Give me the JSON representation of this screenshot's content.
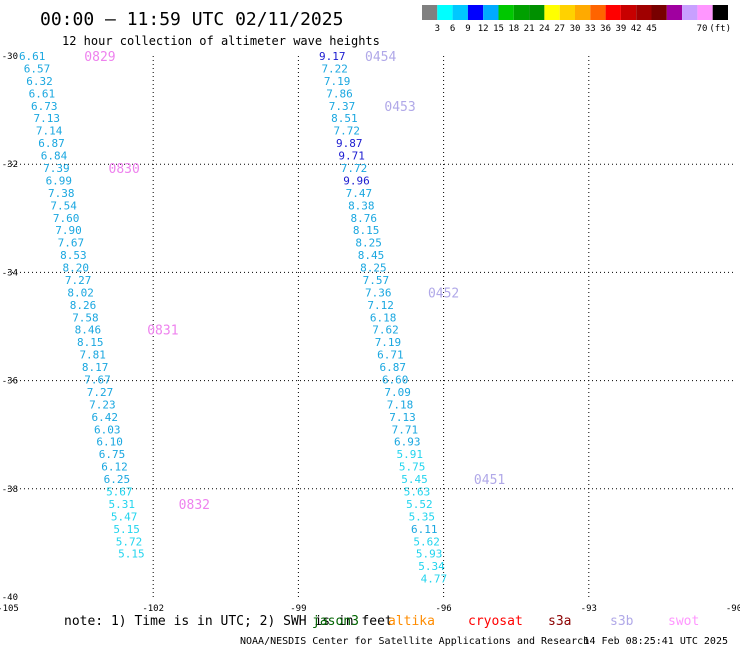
{
  "title": "00:00 – 11:59 UTC 02/11/2025",
  "subtitle": "12 hour collection of altimeter wave heights",
  "colorbar": {
    "colors": [
      "#808080",
      "#00ffff",
      "#00c8ff",
      "#0000ff",
      "#00aaff",
      "#00c800",
      "#00a000",
      "#009000",
      "#ffff00",
      "#ffd200",
      "#ffaa00",
      "#ff6400",
      "#ff0000",
      "#c80000",
      "#a00000",
      "#780000",
      "#a000a0",
      "#c8a0ff",
      "#ff96ff",
      "#000000"
    ],
    "tick_labels": [
      "3",
      "6",
      "9",
      "12",
      "15",
      "18",
      "21",
      "24",
      "27",
      "30",
      "33",
      "36",
      "39",
      "42",
      "45",
      "70"
    ],
    "unit": "(ft)"
  },
  "map": {
    "lon_range": [
      -105,
      -90
    ],
    "lat_range": [
      -40,
      -30
    ],
    "x_ticks": [
      {
        "value": -105,
        "label": "-105"
      },
      {
        "value": -102,
        "label": "-102"
      },
      {
        "value": -99,
        "label": "-99"
      },
      {
        "value": -96,
        "label": "-96"
      },
      {
        "value": -93,
        "label": "-93"
      },
      {
        "value": -90,
        "label": "-90"
      }
    ],
    "y_ticks": [
      {
        "value": -30,
        "label": "-30"
      },
      {
        "value": -32,
        "label": "-32"
      },
      {
        "value": -34,
        "label": "-34"
      },
      {
        "value": -36,
        "label": "-36"
      },
      {
        "value": -38,
        "label": "-38"
      },
      {
        "value": -40,
        "label": "-40"
      }
    ],
    "grid": true
  },
  "chart_data": {
    "type": "scatter",
    "x_axis": "longitude",
    "y_axis": "latitude",
    "series": [
      {
        "points": [
          {
            "lon": -104.5,
            "lat": -30.0,
            "label": "6.61",
            "color": "#1aa7e0"
          },
          {
            "lon": -104.4,
            "lat": -30.23,
            "label": "6.57",
            "color": "#1aa7e0"
          },
          {
            "lon": -104.35,
            "lat": -30.46,
            "label": "6.32",
            "color": "#1aa7e0"
          },
          {
            "lon": -104.3,
            "lat": -30.69,
            "label": "6.61",
            "color": "#1aa7e0"
          },
          {
            "lon": -104.25,
            "lat": -30.92,
            "label": "6.73",
            "color": "#1aa7e0"
          },
          {
            "lon": -104.2,
            "lat": -31.15,
            "label": "7.13",
            "color": "#1aa7e0"
          },
          {
            "lon": -104.15,
            "lat": -31.38,
            "label": "7.14",
            "color": "#1aa7e0"
          },
          {
            "lon": -104.1,
            "lat": -31.61,
            "label": "6.87",
            "color": "#1aa7e0"
          },
          {
            "lon": -104.05,
            "lat": -31.84,
            "label": "6.84",
            "color": "#1aa7e0"
          },
          {
            "lon": -104.0,
            "lat": -32.07,
            "label": "7.39",
            "color": "#1aa7e0"
          },
          {
            "lon": -103.95,
            "lat": -32.3,
            "label": "6.99",
            "color": "#1aa7e0"
          },
          {
            "lon": -103.9,
            "lat": -32.53,
            "label": "7.38",
            "color": "#1aa7e0"
          },
          {
            "lon": -103.85,
            "lat": -32.76,
            "label": "7.54",
            "color": "#1aa7e0"
          },
          {
            "lon": -103.8,
            "lat": -32.99,
            "label": "7.60",
            "color": "#1aa7e0"
          },
          {
            "lon": -103.75,
            "lat": -33.22,
            "label": "7.90",
            "color": "#1aa7e0"
          },
          {
            "lon": -103.7,
            "lat": -33.45,
            "label": "7.67",
            "color": "#1aa7e0"
          },
          {
            "lon": -103.65,
            "lat": -33.68,
            "label": "8.53",
            "color": "#1aa7e0"
          },
          {
            "lon": -103.6,
            "lat": -33.91,
            "label": "8.20",
            "color": "#1aa7e0"
          },
          {
            "lon": -103.55,
            "lat": -34.14,
            "label": "7.27",
            "color": "#1aa7e0"
          },
          {
            "lon": -103.5,
            "lat": -34.37,
            "label": "8.02",
            "color": "#1aa7e0"
          },
          {
            "lon": -103.45,
            "lat": -34.6,
            "label": "8.26",
            "color": "#1aa7e0"
          },
          {
            "lon": -103.4,
            "lat": -34.83,
            "label": "7.58",
            "color": "#1aa7e0"
          },
          {
            "lon": -103.35,
            "lat": -35.06,
            "label": "8.46",
            "color": "#1aa7e0"
          },
          {
            "lon": -103.3,
            "lat": -35.29,
            "label": "8.15",
            "color": "#1aa7e0"
          },
          {
            "lon": -103.25,
            "lat": -35.52,
            "label": "7.81",
            "color": "#1aa7e0"
          },
          {
            "lon": -103.2,
            "lat": -35.75,
            "label": "8.17",
            "color": "#1aa7e0"
          },
          {
            "lon": -103.15,
            "lat": -35.98,
            "label": "7.67",
            "color": "#1aa7e0"
          },
          {
            "lon": -103.1,
            "lat": -36.21,
            "label": "7.27",
            "color": "#1aa7e0"
          },
          {
            "lon": -103.05,
            "lat": -36.44,
            "label": "7.23",
            "color": "#1aa7e0"
          },
          {
            "lon": -103.0,
            "lat": -36.67,
            "label": "6.42",
            "color": "#1aa7e0"
          },
          {
            "lon": -102.95,
            "lat": -36.9,
            "label": "6.03",
            "color": "#1aa7e0"
          },
          {
            "lon": -102.9,
            "lat": -37.13,
            "label": "6.10",
            "color": "#1aa7e0"
          },
          {
            "lon": -102.85,
            "lat": -37.36,
            "label": "6.75",
            "color": "#1aa7e0"
          },
          {
            "lon": -102.8,
            "lat": -37.59,
            "label": "6.12",
            "color": "#1aa7e0"
          },
          {
            "lon": -102.75,
            "lat": -37.82,
            "label": "6.25",
            "color": "#1aa7e0"
          },
          {
            "lon": -102.7,
            "lat": -38.05,
            "label": "5.67",
            "color": "#22d4ee"
          },
          {
            "lon": -102.65,
            "lat": -38.28,
            "label": "5.31",
            "color": "#22d4ee"
          },
          {
            "lon": -102.6,
            "lat": -38.51,
            "label": "5.47",
            "color": "#22d4ee"
          },
          {
            "lon": -102.55,
            "lat": -38.74,
            "label": "5.15",
            "color": "#22d4ee"
          },
          {
            "lon": -102.5,
            "lat": -38.97,
            "label": "5.72",
            "color": "#22d4ee"
          },
          {
            "lon": -102.45,
            "lat": -39.2,
            "label": "5.15",
            "color": "#22d4ee"
          }
        ]
      },
      {
        "points": [
          {
            "lon": -98.3,
            "lat": -30.0,
            "label": "9.17",
            "color": "#1a1ad0"
          },
          {
            "lon": -98.25,
            "lat": -30.23,
            "label": "7.22",
            "color": "#1aa7e0"
          },
          {
            "lon": -98.2,
            "lat": -30.46,
            "label": "7.19",
            "color": "#1aa7e0"
          },
          {
            "lon": -98.15,
            "lat": -30.69,
            "label": "7.86",
            "color": "#1aa7e0"
          },
          {
            "lon": -98.1,
            "lat": -30.92,
            "label": "7.37",
            "color": "#1aa7e0"
          },
          {
            "lon": -98.05,
            "lat": -31.15,
            "label": "8.51",
            "color": "#1aa7e0"
          },
          {
            "lon": -98.0,
            "lat": -31.38,
            "label": "7.72",
            "color": "#1aa7e0"
          },
          {
            "lon": -97.95,
            "lat": -31.61,
            "label": "9.87",
            "color": "#1a1ad0"
          },
          {
            "lon": -97.9,
            "lat": -31.84,
            "label": "9.71",
            "color": "#1a1ad0"
          },
          {
            "lon": -97.85,
            "lat": -32.07,
            "label": "7.72",
            "color": "#1aa7e0"
          },
          {
            "lon": -97.8,
            "lat": -32.3,
            "label": "9.96",
            "color": "#1a1ad0"
          },
          {
            "lon": -97.75,
            "lat": -32.53,
            "label": "7.47",
            "color": "#1aa7e0"
          },
          {
            "lon": -97.7,
            "lat": -32.76,
            "label": "8.38",
            "color": "#1aa7e0"
          },
          {
            "lon": -97.65,
            "lat": -32.99,
            "label": "8.76",
            "color": "#1aa7e0"
          },
          {
            "lon": -97.6,
            "lat": -33.22,
            "label": "8.15",
            "color": "#1aa7e0"
          },
          {
            "lon": -97.55,
            "lat": -33.45,
            "label": "8.25",
            "color": "#1aa7e0"
          },
          {
            "lon": -97.5,
            "lat": -33.68,
            "label": "8.45",
            "color": "#1aa7e0"
          },
          {
            "lon": -97.45,
            "lat": -33.91,
            "label": "8.25",
            "color": "#1aa7e0"
          },
          {
            "lon": -97.4,
            "lat": -34.14,
            "label": "7.57",
            "color": "#1aa7e0"
          },
          {
            "lon": -97.35,
            "lat": -34.37,
            "label": "7.36",
            "color": "#1aa7e0"
          },
          {
            "lon": -97.3,
            "lat": -34.6,
            "label": "7.12",
            "color": "#1aa7e0"
          },
          {
            "lon": -97.25,
            "lat": -34.83,
            "label": "6.18",
            "color": "#1aa7e0"
          },
          {
            "lon": -97.2,
            "lat": -35.06,
            "label": "7.62",
            "color": "#1aa7e0"
          },
          {
            "lon": -97.15,
            "lat": -35.29,
            "label": "7.19",
            "color": "#1aa7e0"
          },
          {
            "lon": -97.1,
            "lat": -35.52,
            "label": "6.71",
            "color": "#1aa7e0"
          },
          {
            "lon": -97.05,
            "lat": -35.75,
            "label": "6.87",
            "color": "#1aa7e0"
          },
          {
            "lon": -97.0,
            "lat": -35.98,
            "label": "6.60",
            "color": "#1aa7e0"
          },
          {
            "lon": -96.95,
            "lat": -36.21,
            "label": "7.09",
            "color": "#1aa7e0"
          },
          {
            "lon": -96.9,
            "lat": -36.44,
            "label": "7.18",
            "color": "#1aa7e0"
          },
          {
            "lon": -96.85,
            "lat": -36.67,
            "label": "7.13",
            "color": "#1aa7e0"
          },
          {
            "lon": -96.8,
            "lat": -36.9,
            "label": "7.71",
            "color": "#1aa7e0"
          },
          {
            "lon": -96.75,
            "lat": -37.13,
            "label": "6.93",
            "color": "#1aa7e0"
          },
          {
            "lon": -96.7,
            "lat": -37.36,
            "label": "5.91",
            "color": "#22d4ee"
          },
          {
            "lon": -96.65,
            "lat": -37.59,
            "label": "5.75",
            "color": "#22d4ee"
          },
          {
            "lon": -96.6,
            "lat": -37.82,
            "label": "5.45",
            "color": "#22d4ee"
          },
          {
            "lon": -96.55,
            "lat": -38.05,
            "label": "5.63",
            "color": "#22d4ee"
          },
          {
            "lon": -96.5,
            "lat": -38.28,
            "label": "5.52",
            "color": "#22d4ee"
          },
          {
            "lon": -96.45,
            "lat": -38.51,
            "label": "5.35",
            "color": "#22d4ee"
          },
          {
            "lon": -96.4,
            "lat": -38.74,
            "label": "6.11",
            "color": "#1aa7e0"
          },
          {
            "lon": -96.35,
            "lat": -38.97,
            "label": "5.62",
            "color": "#22d4ee"
          },
          {
            "lon": -96.3,
            "lat": -39.2,
            "label": "5.93",
            "color": "#22d4ee"
          },
          {
            "lon": -96.25,
            "lat": -39.43,
            "label": "5.34",
            "color": "#22d4ee"
          },
          {
            "lon": -96.2,
            "lat": -39.66,
            "label": "4.77",
            "color": "#22d4ee"
          }
        ]
      }
    ],
    "pass_labels": [
      {
        "lon": -103.1,
        "lat": -30.0,
        "label": "0829",
        "color": "#ee82ee"
      },
      {
        "lon": -102.6,
        "lat": -32.07,
        "label": "0830",
        "color": "#ee82ee"
      },
      {
        "lon": -101.8,
        "lat": -35.06,
        "label": "0831",
        "color": "#ee82ee"
      },
      {
        "lon": -101.15,
        "lat": -38.28,
        "label": "0832",
        "color": "#ee82ee"
      },
      {
        "lon": -97.3,
        "lat": -30.0,
        "label": "0454",
        "color": "#b0a8e8"
      },
      {
        "lon": -96.9,
        "lat": -30.92,
        "label": "0453",
        "color": "#b0a8e8"
      },
      {
        "lon": -96.0,
        "lat": -34.37,
        "label": "0452",
        "color": "#b0a8e8"
      },
      {
        "lon": -95.05,
        "lat": -37.82,
        "label": "0451",
        "color": "#b0a8e8"
      }
    ]
  },
  "note": "note: 1) Time is in UTC; 2) SWH is in feet",
  "satellites": [
    {
      "name": "jason3",
      "color": "#006400"
    },
    {
      "name": "altika",
      "color": "#ff8c00"
    },
    {
      "name": "cryosat",
      "color": "#ff0000"
    },
    {
      "name": "s3a",
      "color": "#8b0000"
    },
    {
      "name": "s3b",
      "color": "#b0a8e8"
    },
    {
      "name": "swot",
      "color": "#ff96ff"
    }
  ],
  "credit": "NOAA/NESDIS Center for Satellite Applications and Research",
  "timestamp": "14 Feb 08:25:41 UTC 2025"
}
